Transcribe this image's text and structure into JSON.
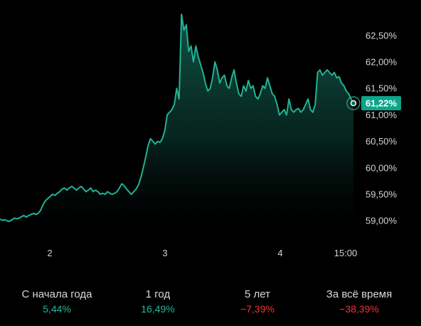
{
  "colors": {
    "line": "#21b295",
    "fill_top": "#0f5a4b",
    "badge": "#0ea58a",
    "positive": "#26b69d",
    "negative": "#f0343c"
  },
  "chart_data": {
    "type": "area",
    "y_ticks": [
      "62,50%",
      "62,00%",
      "61,50%",
      "61,00%",
      "60,50%",
      "60,00%",
      "59,50%",
      "59,00%"
    ],
    "y_tick_values": [
      62.5,
      62.0,
      61.5,
      61.0,
      60.5,
      60.0,
      59.5,
      59.0
    ],
    "x_ticks": [
      "2",
      "3",
      "4",
      "15:00"
    ],
    "ylim": [
      58.6,
      62.9
    ],
    "current_value": 61.22,
    "current_label": "61,22%",
    "grid": false,
    "series": [
      {
        "values": [
          59.03,
          59.01,
          59.02,
          59.0,
          58.99,
          59.02,
          59.05,
          59.04,
          59.05,
          59.08,
          59.1,
          59.07,
          59.1,
          59.12,
          59.14,
          59.12,
          59.14,
          59.2,
          59.3,
          59.38,
          59.42,
          59.46,
          59.5,
          59.48,
          59.52,
          59.55,
          59.6,
          59.62,
          59.58,
          59.62,
          59.65,
          59.62,
          59.58,
          59.62,
          59.65,
          59.6,
          59.55,
          59.58,
          59.62,
          59.55,
          59.58,
          59.55,
          59.5,
          59.52,
          59.5,
          59.55,
          59.52,
          59.5,
          59.52,
          59.55,
          59.62,
          59.7,
          59.66,
          59.6,
          59.55,
          59.5,
          59.55,
          59.6,
          59.68,
          59.82,
          60.0,
          60.2,
          60.42,
          60.55,
          60.5,
          60.45,
          60.5,
          60.48,
          60.55,
          60.7,
          61.0,
          61.05,
          61.1,
          61.2,
          61.5,
          61.3,
          62.9,
          62.6,
          62.7,
          62.2,
          62.3,
          62.0,
          62.3,
          62.1,
          61.95,
          61.8,
          61.6,
          61.45,
          61.5,
          61.7,
          62.0,
          61.85,
          61.6,
          61.7,
          61.75,
          61.55,
          61.5,
          61.7,
          61.85,
          61.6,
          61.4,
          61.35,
          61.55,
          61.45,
          61.65,
          61.5,
          61.55,
          61.35,
          61.3,
          61.4,
          61.55,
          61.5,
          61.7,
          61.55,
          61.4,
          61.35,
          61.2,
          61.0,
          61.05,
          61.1,
          61.0,
          61.3,
          61.1,
          61.05,
          61.1,
          61.12,
          61.05,
          61.1,
          61.2,
          61.3,
          61.1,
          61.05,
          61.2,
          61.8,
          61.85,
          61.75,
          61.8,
          61.85,
          61.8,
          61.75,
          61.8,
          61.7,
          61.72,
          61.6,
          61.55,
          61.45,
          61.4,
          61.3,
          61.22
        ]
      }
    ]
  },
  "stats": [
    {
      "label": "С начала года",
      "value": "5,44%",
      "sign": "positive"
    },
    {
      "label": "1 год",
      "value": "16,49%",
      "sign": "positive"
    },
    {
      "label": "5 лет",
      "value": "−7,39%",
      "sign": "negative"
    },
    {
      "label": "За всё время",
      "value": "−38,39%",
      "sign": "negative"
    }
  ]
}
